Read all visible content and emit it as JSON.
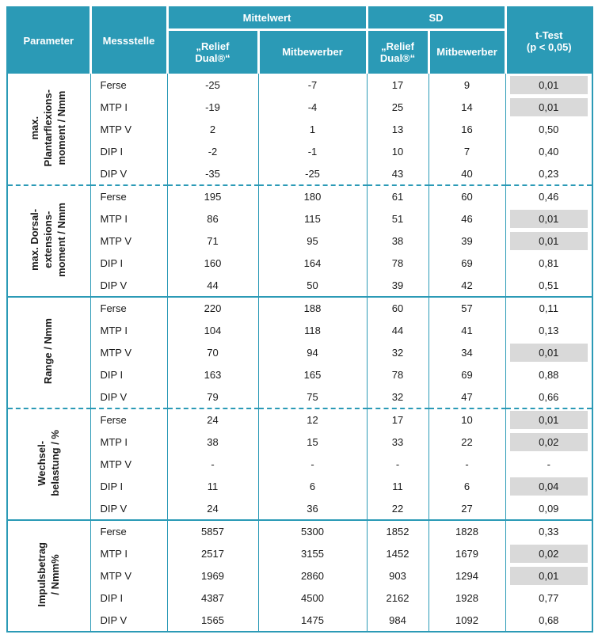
{
  "colors": {
    "teal": "#2b9ab6",
    "gray": "#d9d9d9"
  },
  "header": {
    "parameter": "Parameter",
    "messstelle": "Messstelle",
    "mittelwert": "Mittelwert",
    "sd": "SD",
    "ttest": "t-Test\n(p < 0,05)",
    "relief": "„Relief\nDual®“",
    "mitbewerber": "Mitbewerber"
  },
  "groups": [
    {
      "label": "max.\nPlantarflexions-\nmoment / Nmm",
      "divider": "dashed",
      "rows": [
        {
          "messstelle": "Ferse",
          "values": [
            "-25",
            "-7",
            "17",
            "9"
          ],
          "ttest": "0,01",
          "significant": true
        },
        {
          "messstelle": "MTP I",
          "values": [
            "-19",
            "-4",
            "25",
            "14"
          ],
          "ttest": "0,01",
          "significant": true
        },
        {
          "messstelle": "MTP V",
          "values": [
            "2",
            "1",
            "13",
            "16"
          ],
          "ttest": "0,50",
          "significant": false
        },
        {
          "messstelle": "DIP I",
          "values": [
            "-2",
            "-1",
            "10",
            "7"
          ],
          "ttest": "0,40",
          "significant": false
        },
        {
          "messstelle": "DIP V",
          "values": [
            "-35",
            "-25",
            "43",
            "40"
          ],
          "ttest": "0,23",
          "significant": false
        }
      ]
    },
    {
      "label": "max. Dorsal-\nextensions-\nmoment / Nmm",
      "divider": "solid",
      "rows": [
        {
          "messstelle": "Ferse",
          "values": [
            "195",
            "180",
            "61",
            "60"
          ],
          "ttest": "0,46",
          "significant": false
        },
        {
          "messstelle": "MTP I",
          "values": [
            "86",
            "115",
            "51",
            "46"
          ],
          "ttest": "0,01",
          "significant": true
        },
        {
          "messstelle": "MTP V",
          "values": [
            "71",
            "95",
            "38",
            "39"
          ],
          "ttest": "0,01",
          "significant": true
        },
        {
          "messstelle": "DIP I",
          "values": [
            "160",
            "164",
            "78",
            "69"
          ],
          "ttest": "0,81",
          "significant": false
        },
        {
          "messstelle": "DIP V",
          "values": [
            "44",
            "50",
            "39",
            "42"
          ],
          "ttest": "0,51",
          "significant": false
        }
      ]
    },
    {
      "label": "Range / Nmm",
      "divider": "dashed",
      "rows": [
        {
          "messstelle": "Ferse",
          "values": [
            "220",
            "188",
            "60",
            "57"
          ],
          "ttest": "0,11",
          "significant": false
        },
        {
          "messstelle": "MTP I",
          "values": [
            "104",
            "118",
            "44",
            "41"
          ],
          "ttest": "0,13",
          "significant": false
        },
        {
          "messstelle": "MTP V",
          "values": [
            "70",
            "94",
            "32",
            "34"
          ],
          "ttest": "0,01",
          "significant": true
        },
        {
          "messstelle": "DIP I",
          "values": [
            "163",
            "165",
            "78",
            "69"
          ],
          "ttest": "0,88",
          "significant": false
        },
        {
          "messstelle": "DIP V",
          "values": [
            "79",
            "75",
            "32",
            "47"
          ],
          "ttest": "0,66",
          "significant": false
        }
      ]
    },
    {
      "label": "Wechsel-\nbelastung / %",
      "divider": "solid",
      "rows": [
        {
          "messstelle": "Ferse",
          "values": [
            "24",
            "12",
            "17",
            "10"
          ],
          "ttest": "0,01",
          "significant": true
        },
        {
          "messstelle": "MTP I",
          "values": [
            "38",
            "15",
            "33",
            "22"
          ],
          "ttest": "0,02",
          "significant": true
        },
        {
          "messstelle": "MTP V",
          "values": [
            "-",
            "-",
            "-",
            "-"
          ],
          "ttest": "-",
          "significant": false
        },
        {
          "messstelle": "DIP I",
          "values": [
            "11",
            "6",
            "11",
            "6"
          ],
          "ttest": "0,04",
          "significant": true
        },
        {
          "messstelle": "DIP V",
          "values": [
            "24",
            "36",
            "22",
            "27"
          ],
          "ttest": "0,09",
          "significant": false
        }
      ]
    },
    {
      "label": "Impulsbetrag\n/ Nmm%",
      "divider": "none",
      "rows": [
        {
          "messstelle": "Ferse",
          "values": [
            "5857",
            "5300",
            "1852",
            "1828"
          ],
          "ttest": "0,33",
          "significant": false
        },
        {
          "messstelle": "MTP I",
          "values": [
            "2517",
            "3155",
            "1452",
            "1679"
          ],
          "ttest": "0,02",
          "significant": true
        },
        {
          "messstelle": "MTP V",
          "values": [
            "1969",
            "2860",
            "903",
            "1294"
          ],
          "ttest": "0,01",
          "significant": true
        },
        {
          "messstelle": "DIP I",
          "values": [
            "4387",
            "4500",
            "2162",
            "1928"
          ],
          "ttest": "0,77",
          "significant": false
        },
        {
          "messstelle": "DIP V",
          "values": [
            "1565",
            "1475",
            "984",
            "1092"
          ],
          "ttest": "0,68",
          "significant": false
        }
      ]
    }
  ]
}
